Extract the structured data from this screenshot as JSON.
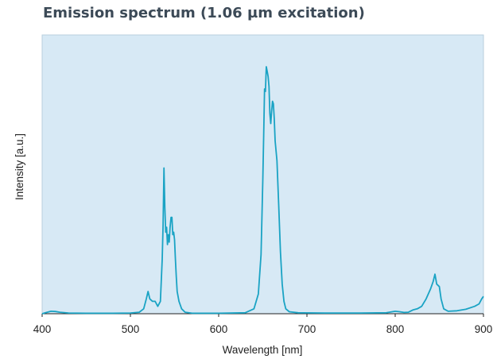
{
  "chart_data": {
    "type": "line",
    "title": "Emission spectrum (1.06 µm excitation)",
    "xlabel": "Wavelength [nm]",
    "ylabel": "Intensity [a.u.]",
    "xlim": [
      400,
      900
    ],
    "ylim": [
      0,
      1
    ],
    "xticks": [
      400,
      500,
      600,
      700,
      800,
      900
    ],
    "x_tick_labels": [
      "400",
      "500",
      "600",
      "700",
      "800",
      "900"
    ],
    "y_ticks_shown": false,
    "grid": false,
    "legend": "none",
    "colors": {
      "line": "#1aa3c4",
      "plot_background": "#d7e9f5",
      "plot_border": "#b9cfdd"
    },
    "series": [
      {
        "x": [
          400,
          405,
          410,
          415,
          420,
          430,
          450,
          480,
          500,
          510,
          515,
          518,
          520,
          522,
          525,
          528,
          531,
          534,
          536,
          537,
          538,
          539,
          540,
          541,
          542,
          543,
          544,
          545,
          546,
          547,
          548,
          549,
          550,
          551,
          552,
          553,
          555,
          558,
          562,
          570,
          600,
          630,
          640,
          645,
          648,
          650,
          651,
          652,
          653,
          654,
          655,
          656,
          657,
          658,
          659,
          660,
          661,
          662,
          663,
          664,
          666,
          668,
          670,
          672,
          674,
          676,
          680,
          690,
          720,
          760,
          790,
          800,
          805,
          810,
          815,
          820,
          825,
          830,
          835,
          840,
          843,
          845,
          847,
          850,
          852,
          855,
          860,
          870,
          880,
          890,
          895,
          898,
          900
        ],
        "y": [
          0.0,
          0.005,
          0.01,
          0.009,
          0.006,
          0.003,
          0.002,
          0.002,
          0.003,
          0.006,
          0.02,
          0.06,
          0.09,
          0.06,
          0.05,
          0.05,
          0.03,
          0.05,
          0.22,
          0.36,
          0.59,
          0.43,
          0.33,
          0.35,
          0.28,
          0.32,
          0.29,
          0.35,
          0.39,
          0.39,
          0.32,
          0.33,
          0.3,
          0.22,
          0.15,
          0.09,
          0.05,
          0.02,
          0.006,
          0.002,
          0.002,
          0.004,
          0.02,
          0.08,
          0.24,
          0.54,
          0.72,
          0.91,
          0.9,
          1.0,
          0.98,
          0.96,
          0.92,
          0.81,
          0.77,
          0.82,
          0.86,
          0.85,
          0.79,
          0.7,
          0.62,
          0.44,
          0.25,
          0.12,
          0.05,
          0.02,
          0.008,
          0.004,
          0.003,
          0.003,
          0.004,
          0.01,
          0.008,
          0.005,
          0.006,
          0.015,
          0.02,
          0.03,
          0.06,
          0.1,
          0.13,
          0.16,
          0.12,
          0.11,
          0.06,
          0.02,
          0.01,
          0.012,
          0.018,
          0.03,
          0.04,
          0.06,
          0.07
        ]
      }
    ]
  }
}
